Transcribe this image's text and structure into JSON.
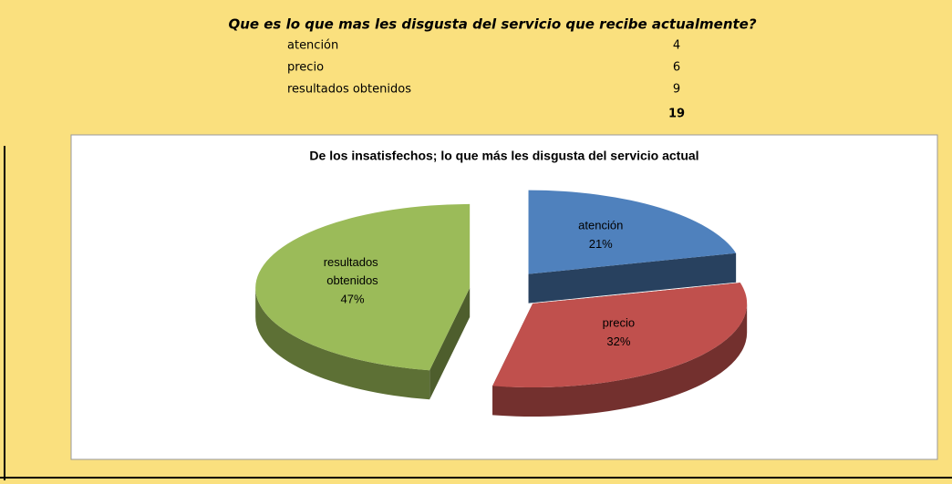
{
  "table": {
    "title": "Que es lo que mas les disgusta del servicio que recibe actualmente?",
    "rows": [
      [
        "atención",
        4
      ],
      [
        "precio",
        6
      ],
      [
        "resultados obtenidos",
        9
      ]
    ],
    "total": 19
  },
  "chart_data": {
    "type": "pie",
    "title": "De los insatisfechos; lo que más les disgusta del servicio actual",
    "categories": [
      "atención",
      "precio",
      "resultados obtenidos"
    ],
    "values": [
      21,
      32,
      47
    ],
    "value_labels": [
      "21%",
      "32%",
      "47%"
    ],
    "colors": [
      "#4f81bd",
      "#c0504d",
      "#9bbb59"
    ]
  }
}
